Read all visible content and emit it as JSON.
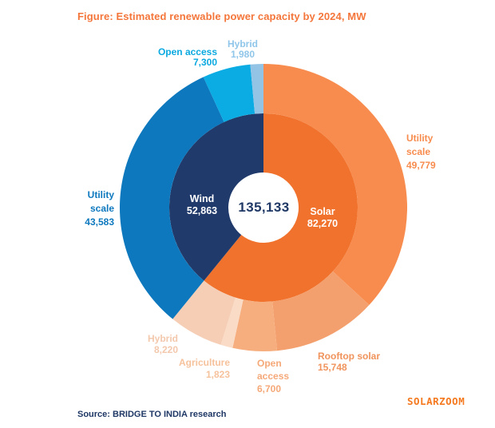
{
  "title": "Figure: Estimated renewable power capacity by 2024, MW",
  "source": "Source: BRIDGE TO INDIA research",
  "watermark": "SOLARZOOM",
  "colors": {
    "title": "#F4763B",
    "source": "#1F3865",
    "watermark": "#F4791F",
    "total_text": "#1F3865",
    "background": "#FFFFFF"
  },
  "chart_data": {
    "type": "donut-sunburst",
    "title": "Estimated renewable power capacity by 2024, MW",
    "units": "MW",
    "total": 135133,
    "total_label": "135,133",
    "start_angle_deg": 0,
    "direction": "clockwise",
    "rings": [
      "inner: technology",
      "outer: deployment segment"
    ],
    "inner": [
      {
        "name": "Solar",
        "value": 82270,
        "callout": "Solar\n82,270",
        "color": "#F1722C",
        "label_color": "#FFFFFF"
      },
      {
        "name": "Wind",
        "value": 52863,
        "callout": "Wind\n52,863",
        "color": "#203A6B",
        "label_color": "#FFFFFF"
      }
    ],
    "outer": [
      {
        "parent": "Solar",
        "name": "Utility scale",
        "value": 49779,
        "callout": "Utility\nscale\n49,779",
        "color": "#F78C4E",
        "label_color": "#F78C4E"
      },
      {
        "parent": "Solar",
        "name": "Rooftop solar",
        "value": 15748,
        "callout": "Rooftop solar\n15,748",
        "color": "#F4A06E",
        "label_color": "#F0935C"
      },
      {
        "parent": "Solar",
        "name": "Open access",
        "value": 6700,
        "callout": "Open\naccess\n6,700",
        "color": "#F6AE7E",
        "label_color": "#F5A878"
      },
      {
        "parent": "Solar",
        "name": "Agriculture",
        "value": 1823,
        "callout": "Agriculture\n1,823",
        "color": "#FADCC6",
        "label_color": "#F6C29C"
      },
      {
        "parent": "Solar",
        "name": "Hybrid",
        "value": 8220,
        "callout": "Hybrid\n8,220",
        "color": "#F5CEB5",
        "label_color": "#F3C8AC"
      },
      {
        "parent": "Wind",
        "name": "Utility scale",
        "value": 43583,
        "callout": "Utility\nscale\n43,583",
        "color": "#0D78BE",
        "label_color": "#0D78BE"
      },
      {
        "parent": "Wind",
        "name": "Open access",
        "value": 7300,
        "callout": "Open access\n7,300",
        "color": "#0AACE3",
        "label_color": "#0AA9E0"
      },
      {
        "parent": "Wind",
        "name": "Hybrid",
        "value": 1980,
        "callout": "Hybrid\n1,980",
        "color": "#93C4E6",
        "label_color": "#8FC6E9"
      }
    ]
  }
}
